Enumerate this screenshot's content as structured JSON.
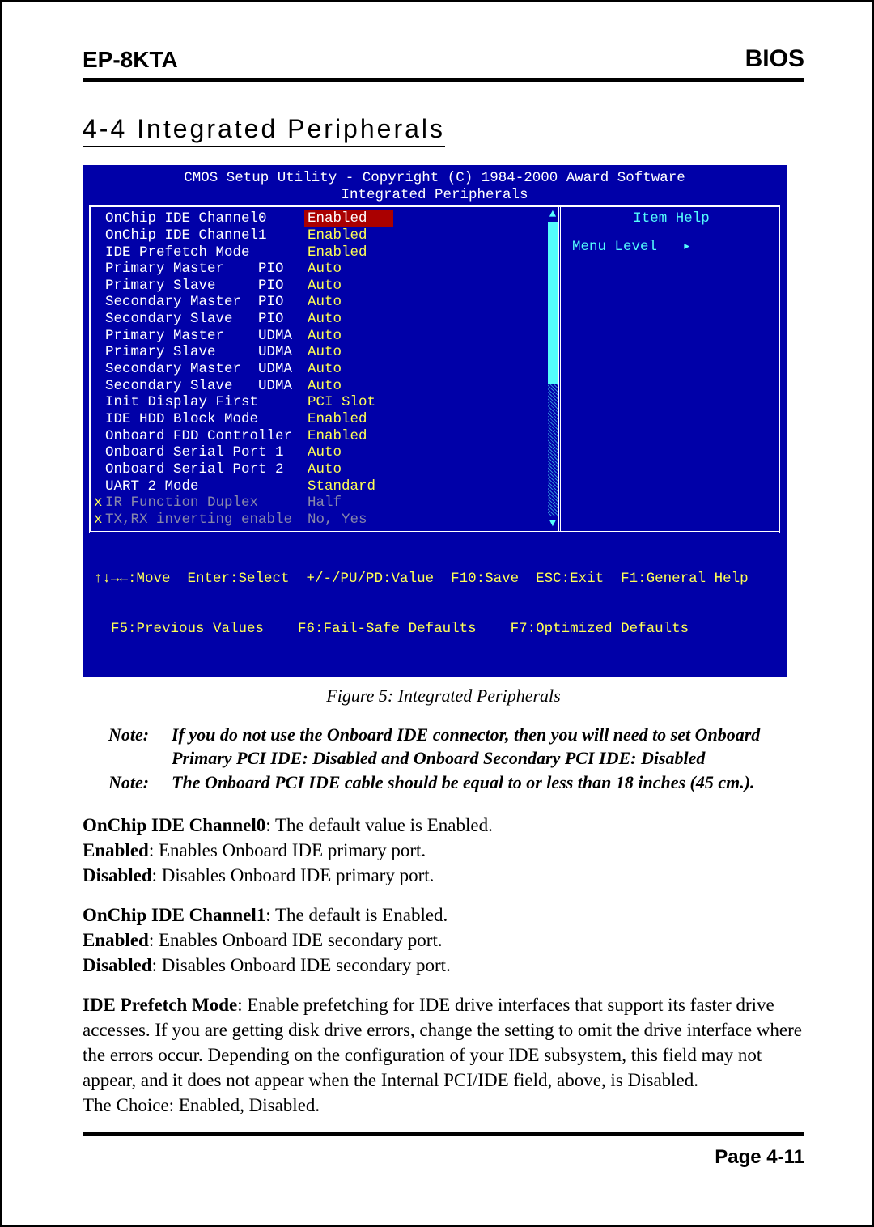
{
  "header": {
    "left": "EP-8KTA",
    "right": "BIOS"
  },
  "section_title": "4-4 Integrated Peripherals",
  "bios": {
    "background": "#0000a8",
    "text_color": "#ffffff",
    "value_color": "#ffff55",
    "selected_bg": "#aa0000",
    "help_color": "#54fcfc",
    "dim_color": "#8888aa",
    "title_line1": "CMOS Setup Utility - Copyright (C) 1984-2000 Award Software",
    "title_line2": "Integrated Peripherals",
    "rows": [
      {
        "label": "OnChip IDE Channel0",
        "value": "Enabled",
        "selected": true
      },
      {
        "label": "OnChip IDE Channel1",
        "value": "Enabled"
      },
      {
        "label": "IDE Prefetch Mode",
        "value": "Enabled"
      },
      {
        "label": "Primary Master    PIO",
        "value": "Auto"
      },
      {
        "label": "Primary Slave     PIO",
        "value": "Auto"
      },
      {
        "label": "Secondary Master  PIO",
        "value": "Auto"
      },
      {
        "label": "Secondary Slave   PIO",
        "value": "Auto"
      },
      {
        "label": "Primary Master    UDMA",
        "value": "Auto"
      },
      {
        "label": "Primary Slave     UDMA",
        "value": "Auto"
      },
      {
        "label": "Secondary Master  UDMA",
        "value": "Auto"
      },
      {
        "label": "Secondary Slave   UDMA",
        "value": "Auto"
      },
      {
        "label": "Init Display First",
        "value": "PCI Slot"
      },
      {
        "label": "IDE HDD Block Mode",
        "value": "Enabled"
      },
      {
        "label": "Onboard FDD Controller",
        "value": "Enabled"
      },
      {
        "label": "Onboard Serial Port 1",
        "value": "Auto"
      },
      {
        "label": "Onboard Serial Port 2",
        "value": "Auto"
      },
      {
        "label": "UART 2 Mode",
        "value": "Standard"
      },
      {
        "label": "IR Function Duplex",
        "value": "Half",
        "dim": true
      },
      {
        "label": "TX,RX inverting enable",
        "value": "No, Yes",
        "dim": true
      }
    ],
    "help_title": "Item Help",
    "help_line": "Menu Level   ▸",
    "footer_line1": "↑↓→←:Move  Enter:Select  +/-/PU/PD:Value  F10:Save  ESC:Exit  F1:General Help",
    "footer_line2": "  F5:Previous Values    F6:Fail-Safe Defaults    F7:Optimized Defaults"
  },
  "figure_caption": "Figure 5:  Integrated Peripherals",
  "notes": [
    {
      "tag": "Note:",
      "text": "If you do not use the Onboard IDE connector, then you will need to set Onboard Primary PCI IDE: Disabled and Onboard Secondary PCI IDE: Disabled"
    },
    {
      "tag": "Note:",
      "text": "The Onboard PCI IDE cable should be equal to or less than 18 inches (45 cm.)."
    }
  ],
  "paragraphs": {
    "p1_b": "OnChip IDE Channel0",
    "p1_t": ": The default value is Enabled.",
    "p1_e1_b": "Enabled",
    "p1_e1_t": ":   Enables Onboard IDE primary port.",
    "p1_e2_b": "Disabled",
    "p1_e2_t": ": Disables Onboard IDE primary port.",
    "p2_b": "OnChip IDE Channel1",
    "p2_t": ": The default is Enabled.",
    "p2_e1_b": "Enabled",
    "p2_e1_t": ":   Enables Onboard IDE secondary port.",
    "p2_e2_b": "Disabled",
    "p2_e2_t": ": Disables Onboard IDE secondary port.",
    "p3_b": "IDE Prefetch Mode",
    "p3_t": ":   Enable prefetching for IDE drive interfaces that support its faster drive accesses.  If you are getting disk drive errors, change the setting to omit the drive interface where the errors occur. Depending on the configuration of your IDE subsystem, this field may not appear, and it does not appear when the Internal PCI/IDE field, above, is Disabled.",
    "p3_choice": "The Choice: Enabled, Disabled."
  },
  "page_number": "Page 4-11"
}
